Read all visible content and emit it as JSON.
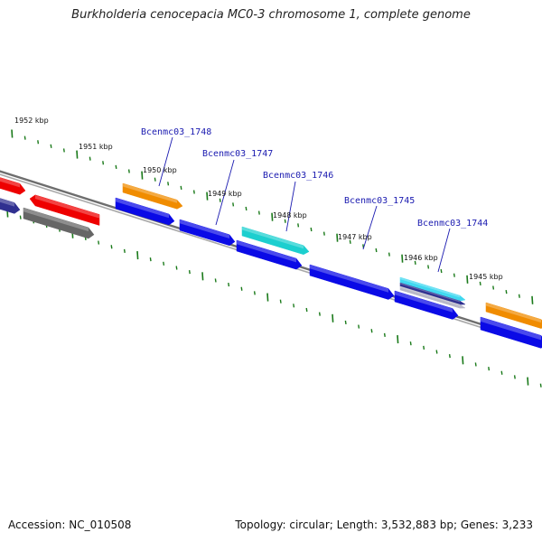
{
  "title": "Burkholderia cenocepacia MC0-3 chromosome 1, complete genome",
  "footer": {
    "accession": "Accession: NC_010508",
    "topology": "Topology: circular; Length: 3,532,883 bp; Genes: 3,233"
  },
  "ticks": [
    "1952 kbp",
    "1951 kbp",
    "1950 kbp",
    "1949 kbp",
    "1948 kbp",
    "1947 kbp",
    "1946 kbp",
    "1945 kbp"
  ],
  "gene_labels": [
    "Bcenmc03_1748",
    "Bcenmc03_1747",
    "Bcenmc03_1746",
    "Bcenmc03_1745",
    "Bcenmc03_1744"
  ],
  "colors": {
    "tick": "#1a7a1a",
    "backbone": "#777777",
    "cds": "#0a0ae6",
    "gene_orange": "#f08c00",
    "gene_cyan": "#1ccfcf",
    "gene_red": "#ee0000",
    "gene_gray": "#666666",
    "gene_navy": "#303090",
    "gene_lightblue": "#40d8f0",
    "label": "#1a1ab0"
  }
}
